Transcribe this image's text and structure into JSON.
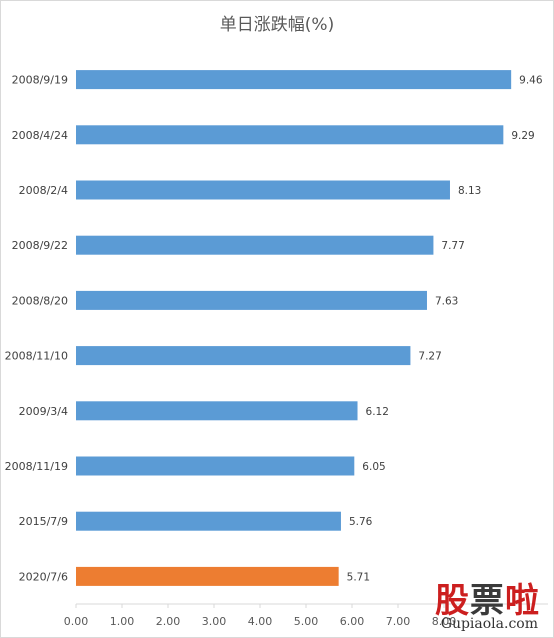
{
  "chart_data": {
    "type": "bar",
    "orientation": "horizontal",
    "title": "单日涨跌幅(%)",
    "categories": [
      "2008/9/19",
      "2008/4/24",
      "2008/2/4",
      "2008/9/22",
      "2008/8/20",
      "2008/11/10",
      "2009/3/4",
      "2008/11/19",
      "2015/7/9",
      "2020/7/6"
    ],
    "values": [
      9.46,
      9.29,
      8.13,
      7.77,
      7.63,
      7.27,
      6.12,
      6.05,
      5.76,
      5.71
    ],
    "value_labels": [
      "9.46",
      "9.29",
      "8.13",
      "7.77",
      "7.63",
      "7.27",
      "6.12",
      "6.05",
      "5.76",
      "5.71"
    ],
    "xlim": [
      0,
      10
    ],
    "x_ticks": [
      "0.00",
      "1.00",
      "2.00",
      "3.00",
      "4.00",
      "5.00",
      "6.00",
      "7.00",
      "8.00"
    ],
    "colors": {
      "default": "#5b9bd5",
      "highlight": "#ed7d31"
    },
    "highlight_index": 9,
    "grid": false,
    "legend": "none"
  },
  "watermark": {
    "chars": [
      "股",
      "票",
      "啦"
    ],
    "url": "Gupiaola.com"
  }
}
